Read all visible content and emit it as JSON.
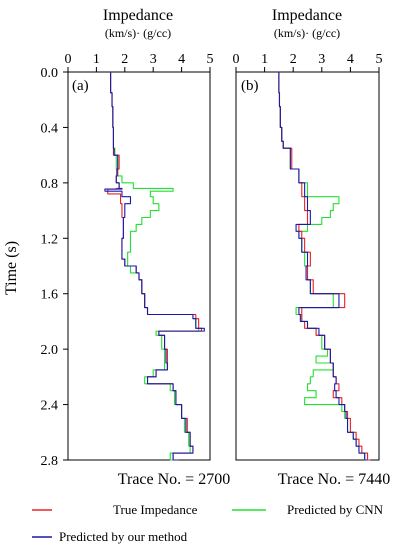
{
  "chart_data": {
    "type": "line",
    "orientation": "vertical-traces",
    "ylabel": "Time (s)",
    "ylim": [
      0.0,
      2.8
    ],
    "yticks": [
      "0.0",
      "0.4",
      "0.8",
      "1.2",
      "1.6",
      "2.0",
      "2.4",
      "2.8"
    ],
    "xlim": [
      0,
      5
    ],
    "xticks": [
      "0",
      "1",
      "2",
      "3",
      "4",
      "5"
    ],
    "xlabel_line1": "Impedance",
    "xlabel_line2": "(km/s)· (g/cc)",
    "legend": {
      "entries": [
        {
          "name": "True Impedance",
          "color": "#e8202a"
        },
        {
          "name": "Predicted by CNN",
          "color": "#22e030"
        },
        {
          "name": "Predicted by our method",
          "color": "#1a1aa8"
        }
      ]
    },
    "panels": [
      {
        "tag": "(a)",
        "trace_label": "Trace No. = 2700",
        "series": [
          {
            "name": "True Impedance",
            "color": "#e8202a",
            "t": [
              0.0,
              0.15,
              0.2,
              0.25,
              0.4,
              0.55,
              0.6,
              0.7,
              0.75,
              0.8,
              0.84,
              0.845,
              0.88,
              0.95,
              1.05,
              1.2,
              1.35,
              1.4,
              1.45,
              1.5,
              1.6,
              1.7,
              1.75,
              1.78,
              1.85,
              1.87,
              1.9,
              2.0,
              2.1,
              2.15,
              2.2,
              2.25,
              2.3,
              2.4,
              2.5,
              2.6,
              2.7,
              2.75,
              2.8
            ],
            "x": [
              1.5,
              1.55,
              1.55,
              1.58,
              1.6,
              1.6,
              1.8,
              1.75,
              1.7,
              1.8,
              1.7,
              1.4,
              1.85,
              1.9,
              1.95,
              1.9,
              2.0,
              2.4,
              2.5,
              2.6,
              2.7,
              2.8,
              4.5,
              4.6,
              4.7,
              3.2,
              3.4,
              3.5,
              3.5,
              3.1,
              2.8,
              3.7,
              3.8,
              4.0,
              4.2,
              4.3,
              4.4,
              3.7,
              3.9
            ]
          },
          {
            "name": "Predicted by CNN",
            "color": "#22e030",
            "t": [
              0.0,
              0.15,
              0.2,
              0.25,
              0.4,
              0.55,
              0.6,
              0.7,
              0.75,
              0.8,
              0.84,
              0.86,
              0.9,
              0.95,
              1.0,
              1.05,
              1.1,
              1.15,
              1.2,
              1.3,
              1.4,
              1.45,
              1.5,
              1.6,
              1.7,
              1.75,
              1.78,
              1.85,
              1.87,
              1.9,
              2.0,
              2.1,
              2.15,
              2.2,
              2.25,
              2.3,
              2.4,
              2.5,
              2.6,
              2.7,
              2.75,
              2.8
            ],
            "x": [
              1.5,
              1.55,
              1.55,
              1.58,
              1.6,
              1.65,
              1.7,
              1.75,
              1.9,
              2.3,
              3.7,
              2.9,
              3.0,
              3.2,
              2.9,
              2.6,
              2.4,
              2.2,
              2.2,
              2.1,
              2.2,
              2.5,
              2.6,
              2.7,
              2.8,
              4.4,
              4.5,
              4.6,
              3.1,
              3.3,
              3.4,
              3.4,
              3.0,
              2.7,
              3.6,
              3.75,
              4.0,
              4.1,
              4.25,
              4.3,
              3.6,
              3.8
            ]
          },
          {
            "name": "Predicted by our method",
            "color": "#1a1aa8",
            "t": [
              0.0,
              0.15,
              0.2,
              0.25,
              0.4,
              0.55,
              0.6,
              0.7,
              0.75,
              0.8,
              0.84,
              0.845,
              0.86,
              0.9,
              0.95,
              1.05,
              1.2,
              1.35,
              1.4,
              1.45,
              1.5,
              1.6,
              1.7,
              1.75,
              1.78,
              1.85,
              1.87,
              1.9,
              2.0,
              2.1,
              2.15,
              2.2,
              2.25,
              2.3,
              2.4,
              2.5,
              2.6,
              2.7,
              2.75,
              2.8
            ],
            "x": [
              1.5,
              1.55,
              1.55,
              1.58,
              1.6,
              1.62,
              1.75,
              1.72,
              1.7,
              1.8,
              1.9,
              1.3,
              1.9,
              2.2,
              2.0,
              1.95,
              1.9,
              2.0,
              2.4,
              2.5,
              2.6,
              2.7,
              2.8,
              4.4,
              4.5,
              4.8,
              3.2,
              3.4,
              3.45,
              3.5,
              3.1,
              2.8,
              3.7,
              3.8,
              4.0,
              4.15,
              4.3,
              4.4,
              3.7,
              3.9
            ]
          }
        ]
      },
      {
        "tag": "(b)",
        "trace_label": "Trace No. = 7440",
        "series": [
          {
            "name": "True Impedance",
            "color": "#e8202a",
            "t": [
              0.0,
              0.15,
              0.25,
              0.4,
              0.5,
              0.55,
              0.7,
              0.8,
              0.9,
              1.0,
              1.1,
              1.15,
              1.2,
              1.3,
              1.4,
              1.5,
              1.6,
              1.7,
              1.75,
              1.8,
              1.85,
              1.9,
              2.0,
              2.1,
              2.2,
              2.25,
              2.3,
              2.35,
              2.4,
              2.45,
              2.5,
              2.6,
              2.65,
              2.7,
              2.75,
              2.8
            ],
            "x": [
              1.5,
              1.52,
              1.55,
              1.6,
              1.65,
              1.95,
              2.2,
              2.3,
              2.4,
              2.5,
              2.2,
              2.3,
              2.4,
              2.6,
              2.5,
              2.7,
              3.8,
              2.3,
              2.3,
              2.4,
              2.8,
              3.1,
              3.3,
              3.4,
              3.5,
              3.6,
              3.4,
              3.7,
              3.8,
              3.9,
              4.0,
              4.2,
              4.3,
              4.4,
              4.6,
              4.7
            ]
          },
          {
            "name": "Predicted by CNN",
            "color": "#22e030",
            "t": [
              0.0,
              0.15,
              0.25,
              0.4,
              0.5,
              0.55,
              0.7,
              0.8,
              0.9,
              0.95,
              1.0,
              1.05,
              1.1,
              1.15,
              1.2,
              1.3,
              1.4,
              1.5,
              1.6,
              1.7,
              1.75,
              1.8,
              1.85,
              1.9,
              2.0,
              2.05,
              2.1,
              2.15,
              2.2,
              2.25,
              2.3,
              2.35,
              2.4,
              2.45,
              2.5,
              2.6,
              2.65,
              2.7,
              2.75,
              2.8
            ],
            "x": [
              1.5,
              1.52,
              1.55,
              1.6,
              1.65,
              1.9,
              2.2,
              2.5,
              3.6,
              3.4,
              3.3,
              3.0,
              2.5,
              2.2,
              2.3,
              2.4,
              2.5,
              2.6,
              3.4,
              2.1,
              2.3,
              2.5,
              2.8,
              3.0,
              3.2,
              2.8,
              3.4,
              2.7,
              2.6,
              2.5,
              2.8,
              2.4,
              3.7,
              3.8,
              3.9,
              4.1,
              4.2,
              4.3,
              4.5,
              4.6
            ]
          },
          {
            "name": "Predicted by our method",
            "color": "#1a1aa8",
            "t": [
              0.0,
              0.15,
              0.25,
              0.4,
              0.5,
              0.55,
              0.7,
              0.8,
              0.9,
              1.0,
              1.1,
              1.15,
              1.2,
              1.3,
              1.4,
              1.5,
              1.6,
              1.7,
              1.75,
              1.8,
              1.85,
              1.9,
              2.0,
              2.1,
              2.2,
              2.25,
              2.3,
              2.35,
              2.4,
              2.45,
              2.5,
              2.6,
              2.65,
              2.7,
              2.75,
              2.8
            ],
            "x": [
              1.5,
              1.52,
              1.55,
              1.6,
              1.65,
              1.9,
              2.2,
              2.4,
              2.5,
              2.6,
              2.1,
              2.2,
              2.3,
              2.5,
              2.45,
              2.6,
              3.6,
              2.2,
              2.25,
              2.5,
              2.9,
              3.1,
              3.3,
              3.4,
              3.5,
              3.45,
              3.5,
              3.6,
              3.8,
              3.85,
              3.9,
              4.1,
              4.2,
              4.3,
              4.5,
              4.6
            ]
          }
        ]
      }
    ]
  }
}
